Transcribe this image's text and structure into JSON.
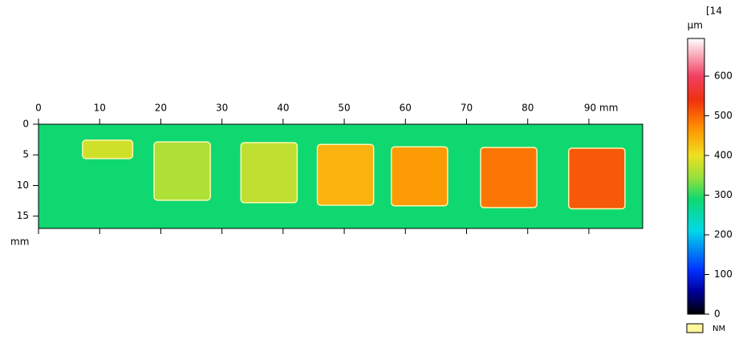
{
  "chart_data": {
    "type": "heatmap",
    "x_unit_label": "mm",
    "y_unit_label": "mm",
    "xlim": [
      0,
      98.8
    ],
    "ylim": [
      0,
      17
    ],
    "xticks": [
      0,
      10,
      20,
      30,
      40,
      50,
      60,
      70,
      80,
      {
        "value": 90,
        "label": "90 mm"
      }
    ],
    "yticks": [
      0,
      5,
      10,
      15
    ],
    "background_height": 290,
    "regions": [
      {
        "x": [
          7.2,
          15.4
        ],
        "y": [
          2.6,
          5.6
        ],
        "height": 380
      },
      {
        "x": [
          18.9,
          28.1
        ],
        "y": [
          2.9,
          12.4
        ],
        "height": 360
      },
      {
        "x": [
          33.1,
          42.3
        ],
        "y": [
          3.0,
          12.8
        ],
        "height": 370
      },
      {
        "x": [
          45.6,
          54.8
        ],
        "y": [
          3.3,
          13.2
        ],
        "height": 440
      },
      {
        "x": [
          57.7,
          66.9
        ],
        "y": [
          3.7,
          13.3
        ],
        "height": 460
      },
      {
        "x": [
          72.3,
          81.5
        ],
        "y": [
          3.8,
          13.6
        ],
        "height": 490
      },
      {
        "x": [
          86.7,
          95.9
        ],
        "y": [
          3.9,
          13.8
        ],
        "height": 510
      }
    ],
    "colorbar": {
      "unit_label": "µm",
      "note": "[14",
      "clim": [
        0,
        695
      ],
      "ticks": [
        0,
        100,
        200,
        300,
        400,
        500,
        600
      ],
      "colormap": [
        {
          "value": 0,
          "color": "#000000"
        },
        {
          "value": 60,
          "color": "#0000a0"
        },
        {
          "value": 110,
          "color": "#0030ff"
        },
        {
          "value": 210,
          "color": "#00d8e8"
        },
        {
          "value": 290,
          "color": "#10d870"
        },
        {
          "value": 340,
          "color": "#8ee040"
        },
        {
          "value": 400,
          "color": "#f0e020"
        },
        {
          "value": 470,
          "color": "#ff9000"
        },
        {
          "value": 540,
          "color": "#f03010"
        },
        {
          "value": 600,
          "color": "#f04060"
        },
        {
          "value": 695,
          "color": "#ffffff"
        }
      ]
    },
    "legend": {
      "label": "NM",
      "color": "#fff59a"
    }
  }
}
